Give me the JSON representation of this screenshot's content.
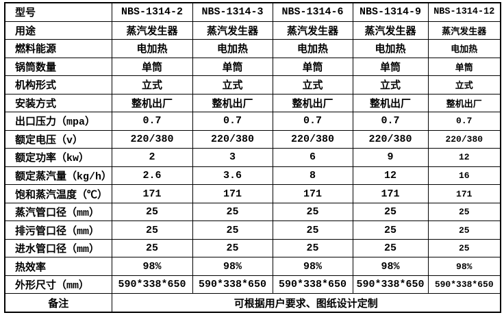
{
  "table": {
    "rows": [
      {
        "label": "型号",
        "values": [
          "NBS-1314-2",
          "NBS-1314-3",
          "NBS-1314-6",
          "NBS-1314-9",
          "NBS-1314-12"
        ]
      },
      {
        "label": "用途",
        "values": [
          "蒸汽发生器",
          "蒸汽发生器",
          "蒸汽发生器",
          "蒸汽发生器",
          "蒸汽发生器"
        ]
      },
      {
        "label": "燃料能源",
        "values": [
          "电加热",
          "电加热",
          "电加热",
          "电加热",
          "电加热"
        ]
      },
      {
        "label": "锅筒数量",
        "values": [
          "单筒",
          "单筒",
          "单筒",
          "单筒",
          "单筒"
        ]
      },
      {
        "label": "机构形式",
        "values": [
          "立式",
          "立式",
          "立式",
          "立式",
          "立式"
        ]
      },
      {
        "label": "安装方式",
        "values": [
          "整机出厂",
          "整机出厂",
          "整机出厂",
          "整机出厂",
          "整机出厂"
        ]
      },
      {
        "label": "出口压力（mpa）",
        "values": [
          "0.7",
          "0.7",
          "0.7",
          "0.7",
          "0.7"
        ]
      },
      {
        "label": "额定电压（v）",
        "values": [
          "220/380",
          "220/380",
          "220/380",
          "220/380",
          "220/380"
        ]
      },
      {
        "label": "额定功率（kw）",
        "values": [
          "2",
          "3",
          "6",
          "9",
          "12"
        ]
      },
      {
        "label": "额定蒸汽量（kg/h）",
        "values": [
          "2.6",
          "3.6",
          "8",
          "12",
          "16"
        ]
      },
      {
        "label": "饱和蒸汽温度（℃）",
        "values": [
          "171",
          "171",
          "171",
          "171",
          "171"
        ]
      },
      {
        "label": "蒸汽管口径（mm）",
        "values": [
          "25",
          "25",
          "25",
          "25",
          "25"
        ]
      },
      {
        "label": "排污管口径（mm）",
        "values": [
          "25",
          "25",
          "25",
          "25",
          "25"
        ]
      },
      {
        "label": "进水管口径（mm）",
        "values": [
          "25",
          "25",
          "25",
          "25",
          "25"
        ]
      },
      {
        "label": "热效率",
        "values": [
          "98%",
          "98%",
          "98%",
          "98%",
          "98%"
        ]
      },
      {
        "label": "外形尺寸（mm）",
        "values": [
          "590*338*650",
          "590*338*650",
          "590*338*650",
          "590*338*650",
          "590*338*650"
        ]
      },
      {
        "label": "备注",
        "merged": "可根据用户要求、图纸设计定制"
      }
    ],
    "colors": {
      "border": "#000000",
      "text": "#000000",
      "background": "#ffffff"
    }
  }
}
